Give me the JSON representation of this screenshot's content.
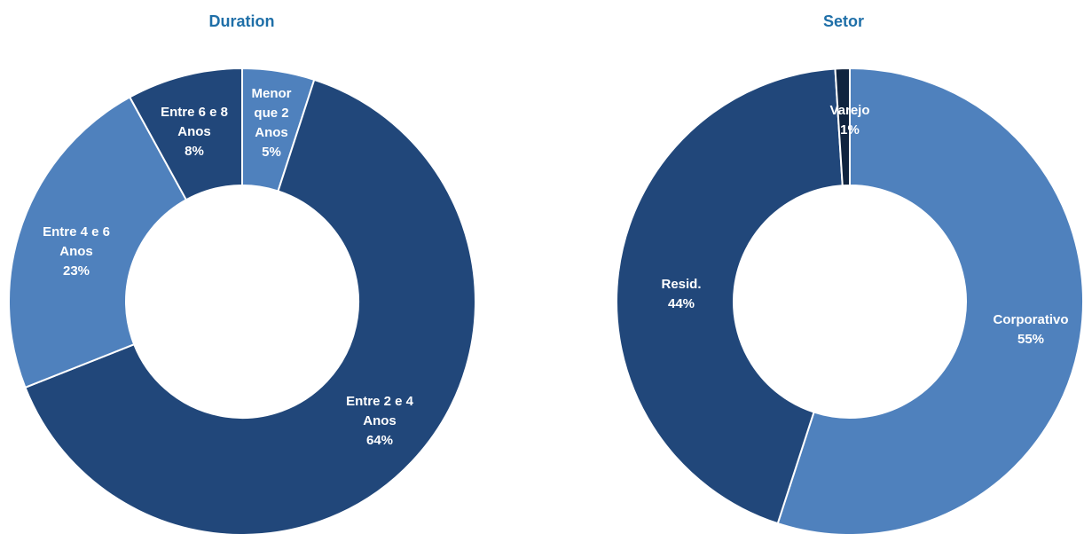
{
  "colors": {
    "title": "#1f6fa8",
    "dark_blue": "#21477a",
    "mid_blue": "#4f81bd",
    "navy": "#10243f",
    "separator": "#ffffff"
  },
  "chart_data": [
    {
      "type": "pie",
      "donut": true,
      "title": "Duration",
      "slices": [
        {
          "label": [
            "Menor",
            "que 2",
            "Anos"
          ],
          "value": 5,
          "value_label": "5%",
          "color": "#4f81bd"
        },
        {
          "label": [
            "Entre 2 e 4",
            "Anos"
          ],
          "value": 64,
          "value_label": "64%",
          "color": "#21477a"
        },
        {
          "label": [
            "Entre 4 e 6",
            "Anos"
          ],
          "value": 23,
          "value_label": "23%",
          "color": "#4f81bd"
        },
        {
          "label": [
            "Entre 6 e 8",
            "Anos"
          ],
          "value": 8,
          "value_label": "8%",
          "color": "#21477a"
        }
      ]
    },
    {
      "type": "pie",
      "donut": true,
      "title": "Setor",
      "slices": [
        {
          "label": [
            "Corporativo"
          ],
          "value": 55,
          "value_label": "55%",
          "color": "#4f81bd"
        },
        {
          "label": [
            "Resid."
          ],
          "value": 44,
          "value_label": "44%",
          "color": "#21477a"
        },
        {
          "label": [
            "Varejo"
          ],
          "value": 1,
          "value_label": "1%",
          "color": "#10243f"
        }
      ]
    }
  ]
}
